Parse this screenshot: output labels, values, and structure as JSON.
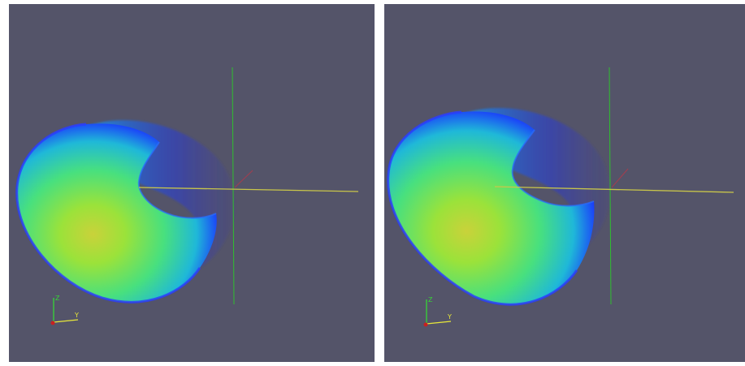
{
  "views": [
    {
      "id": "left",
      "orientation_axes": {
        "z_label": "Z",
        "y_label": "Y",
        "z_color": "#36d636",
        "y_color": "#e8e83a",
        "x_color": "#c82020"
      }
    },
    {
      "id": "right",
      "orientation_axes": {
        "z_label": "Z",
        "y_label": "Y",
        "z_color": "#36d636",
        "y_color": "#e8e83a",
        "x_color": "#c82020"
      }
    }
  ],
  "colors": {
    "background": "#545469",
    "separator": "#ffffff",
    "axis_vertical": "#2fbf2f",
    "axis_horizontal": "#c9c64a",
    "axis_diagonal": "#b03a4a",
    "surface_edge": "#1e2cff",
    "surface_mid": "#2fd8a8",
    "surface_core": "#8bea3a",
    "surface_hot": "#c8d43a"
  }
}
